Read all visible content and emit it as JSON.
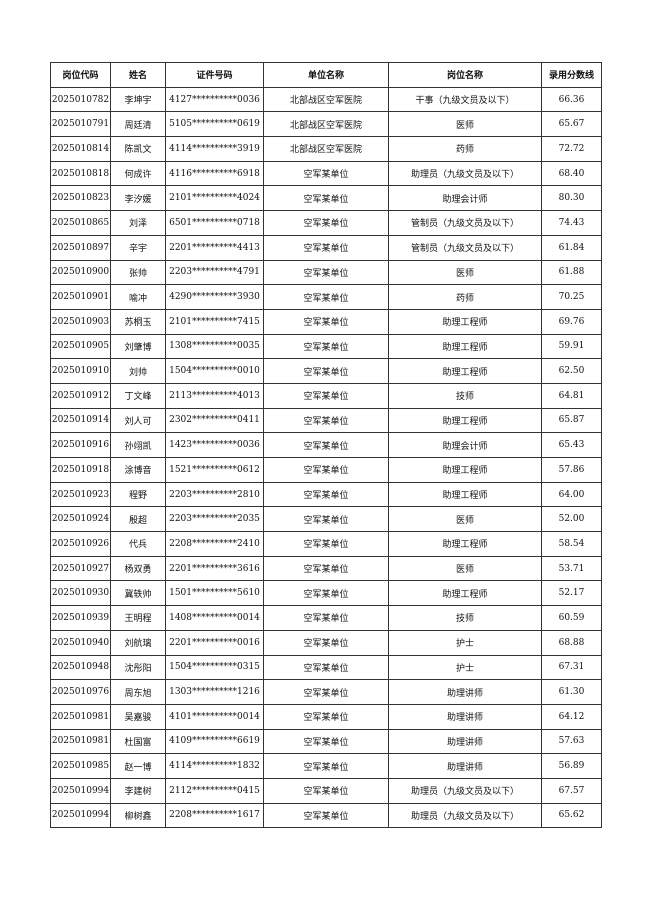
{
  "headers": [
    "岗位代码",
    "姓名",
    "证件号码",
    "单位名称",
    "岗位名称",
    "录用分数线"
  ],
  "rows": [
    [
      "2025010782",
      "李坤宇",
      "4127**********0036",
      "北部战区空军医院",
      "干事（九级文员及以下）",
      "66.36"
    ],
    [
      "2025010791",
      "周廷清",
      "5105**********0619",
      "北部战区空军医院",
      "医师",
      "65.67"
    ],
    [
      "2025010814",
      "陈凯文",
      "4114**********3919",
      "北部战区空军医院",
      "药师",
      "72.72"
    ],
    [
      "2025010818",
      "何成许",
      "4116**********6918",
      "空军某单位",
      "助理员（九级文员及以下）",
      "68.40"
    ],
    [
      "2025010823",
      "李汐媛",
      "2101**********4024",
      "空军某单位",
      "助理会计师",
      "80.30"
    ],
    [
      "2025010865",
      "刘泽",
      "6501**********0718",
      "空军某单位",
      "管制员（九级文员及以下）",
      "74.43"
    ],
    [
      "2025010897",
      "辛宇",
      "2201**********4413",
      "空军某单位",
      "管制员（九级文员及以下）",
      "61.84"
    ],
    [
      "2025010900",
      "张帅",
      "2203**********4791",
      "空军某单位",
      "医师",
      "61.88"
    ],
    [
      "2025010901",
      "喻冲",
      "4290**********3930",
      "空军某单位",
      "药师",
      "70.25"
    ],
    [
      "2025010903",
      "苏桐玉",
      "2101**********7415",
      "空军某单位",
      "助理工程师",
      "69.76"
    ],
    [
      "2025010905",
      "刘肇博",
      "1308**********0035",
      "空军某单位",
      "助理工程师",
      "59.91"
    ],
    [
      "2025010910",
      "刘帅",
      "1504**********0010",
      "空军某单位",
      "助理工程师",
      "62.50"
    ],
    [
      "2025010912",
      "丁文峰",
      "2113**********4013",
      "空军某单位",
      "技师",
      "64.81"
    ],
    [
      "2025010914",
      "刘人可",
      "2302**********0411",
      "空军某单位",
      "助理工程师",
      "65.87"
    ],
    [
      "2025010916",
      "孙翊凯",
      "1423**********0036",
      "空军某单位",
      "助理会计师",
      "65.43"
    ],
    [
      "2025010918",
      "涂博音",
      "1521**********0612",
      "空军某单位",
      "助理工程师",
      "57.86"
    ],
    [
      "2025010923",
      "程野",
      "2203**********2810",
      "空军某单位",
      "助理工程师",
      "64.00"
    ],
    [
      "2025010924",
      "殷超",
      "2203**********2035",
      "空军某单位",
      "医师",
      "52.00"
    ],
    [
      "2025010926",
      "代兵",
      "2208**********2410",
      "空军某单位",
      "助理工程师",
      "58.54"
    ],
    [
      "2025010927",
      "杨双勇",
      "2201**********3616",
      "空军某单位",
      "医师",
      "53.71"
    ],
    [
      "2025010930",
      "冀轶帅",
      "1501**********5610",
      "空军某单位",
      "助理工程师",
      "52.17"
    ],
    [
      "2025010939",
      "王明程",
      "1408**********0014",
      "空军某单位",
      "技师",
      "60.59"
    ],
    [
      "2025010940",
      "刘航璃",
      "2201**********0016",
      "空军某单位",
      "护士",
      "68.88"
    ],
    [
      "2025010948",
      "沈彤阳",
      "1504**********0315",
      "空军某单位",
      "护士",
      "67.31"
    ],
    [
      "2025010976",
      "周东旭",
      "1303**********1216",
      "空军某单位",
      "助理讲师",
      "61.30"
    ],
    [
      "2025010981",
      "吴嘉骏",
      "4101**********0014",
      "空军某单位",
      "助理讲师",
      "64.12"
    ],
    [
      "2025010981",
      "杜国富",
      "4109**********6619",
      "空军某单位",
      "助理讲师",
      "57.63"
    ],
    [
      "2025010985",
      "赵一博",
      "4114**********1832",
      "空军某单位",
      "助理讲师",
      "56.89"
    ],
    [
      "2025010994",
      "李建树",
      "2112**********0415",
      "空军某单位",
      "助理员（九级文员及以下）",
      "67.57"
    ],
    [
      "2025010994",
      "柳树鑫",
      "2208**********1617",
      "空军某单位",
      "助理员（九级文员及以下）",
      "65.62"
    ]
  ]
}
